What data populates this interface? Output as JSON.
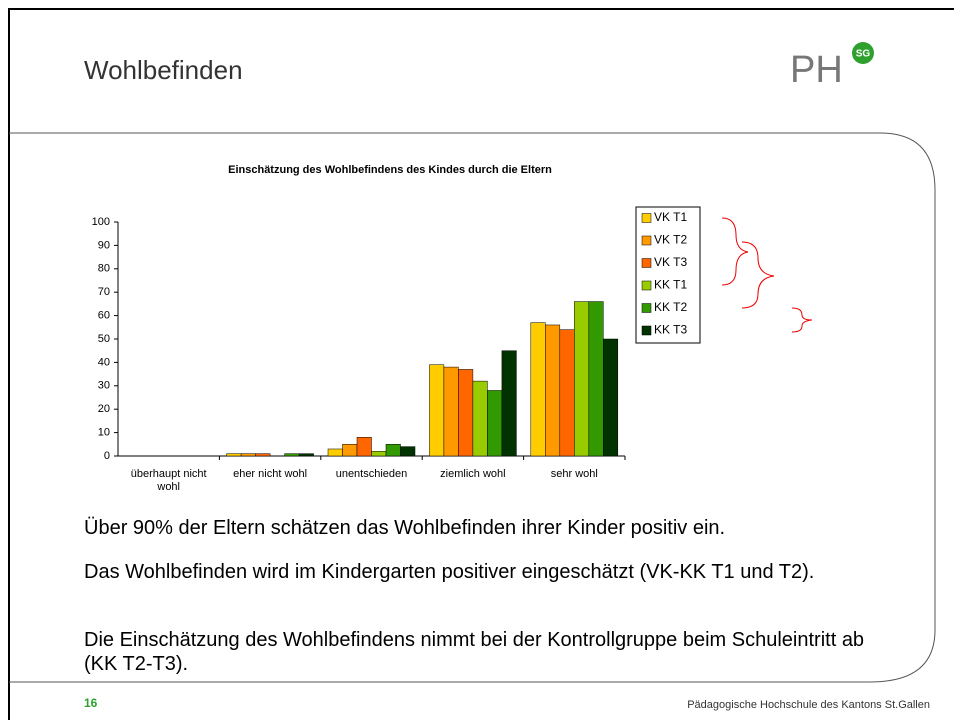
{
  "slide": {
    "title": "Wohlbefinden",
    "logo": "PH",
    "logo_badge": "SG",
    "bullets": [
      "Über 90% der Eltern schätzen das Wohlbefinden ihrer Kinder positiv ein.",
      "Das Wohlbefinden wird im Kindergarten positiver eingeschätzt (VK-KK T1 und T2).",
      "Die Einschätzung des Wohlbefindens nimmt bei der Kontrollgruppe beim Schuleintritt ab (KK T2-T3)."
    ],
    "page_number": "16",
    "footer": "Pädagogische Hochschule des Kantons St.Gallen"
  },
  "chart_data": {
    "type": "bar",
    "title": "Einschätzung des Wohlbefindens des Kindes durch die Eltern",
    "categories": [
      "überhaupt nicht wohl",
      "eher nicht wohl",
      "unentschieden",
      "ziemlich wohl",
      "sehr wohl"
    ],
    "series": [
      {
        "name": "VK T1",
        "color": "#ffcc00",
        "values": [
          0,
          1,
          3,
          39,
          57
        ]
      },
      {
        "name": "VK T2",
        "color": "#ff9900",
        "values": [
          0,
          1,
          5,
          38,
          56
        ]
      },
      {
        "name": "VK T3",
        "color": "#ff6600",
        "values": [
          0,
          1,
          8,
          37,
          54
        ]
      },
      {
        "name": "KK T1",
        "color": "#99cc00",
        "values": [
          0,
          0,
          2,
          32,
          66
        ]
      },
      {
        "name": "KK T2",
        "color": "#339900",
        "values": [
          0,
          1,
          5,
          28,
          66
        ]
      },
      {
        "name": "KK T3",
        "color": "#003300",
        "values": [
          0,
          1,
          4,
          45,
          50
        ]
      }
    ],
    "ylim": [
      0,
      100
    ],
    "yticks": [
      0,
      10,
      20,
      30,
      40,
      50,
      60,
      70,
      80,
      90,
      100
    ],
    "legend": "right"
  }
}
